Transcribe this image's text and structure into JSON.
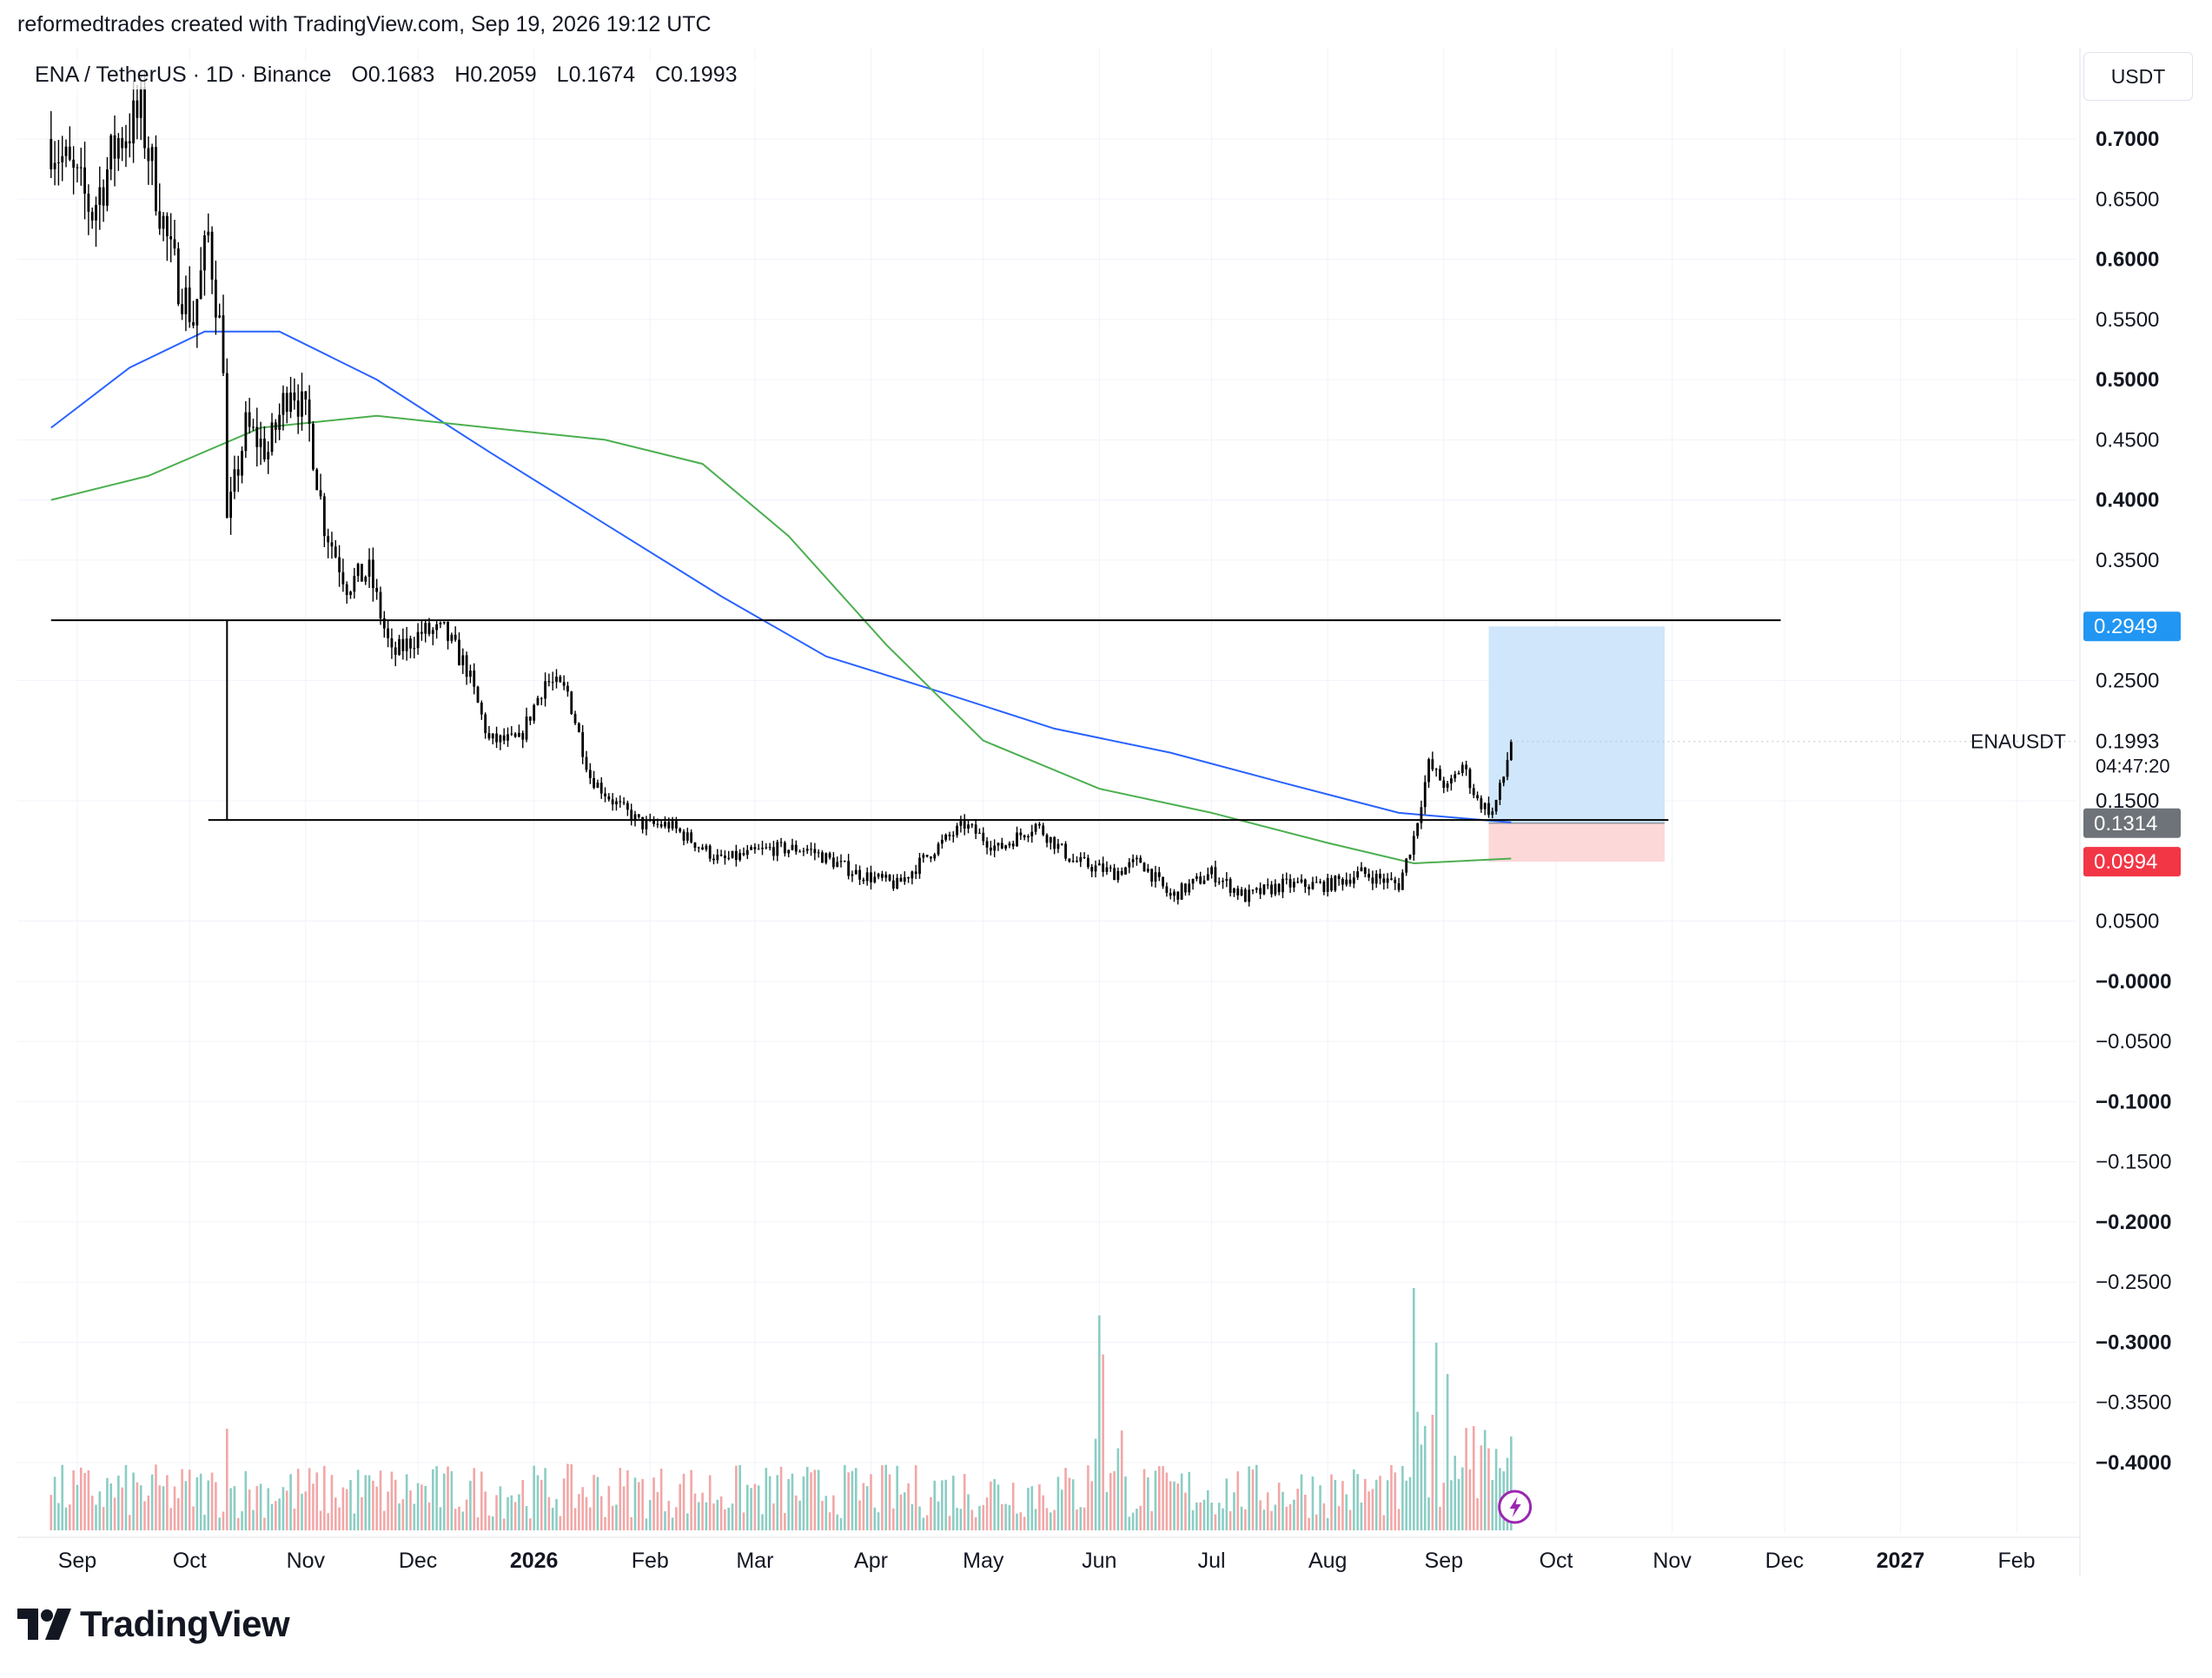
{
  "header": {
    "credit": "reformedtrades created with TradingView.com, Sep 19, 2026 19:12 UTC"
  },
  "symbol": {
    "name": "ENA / TetherUS · 1D · Binance",
    "open": "O0.1683",
    "high": "H0.2059",
    "low": "L0.1674",
    "close": "C0.1993"
  },
  "currency_button": "USDT",
  "logo_text": "TradingView",
  "colors": {
    "candle": "#000000",
    "ma_blue": "#2962ff",
    "ma_green": "#4caf50",
    "vol_up": "#8bcdc4",
    "vol_down": "#f2a7a7",
    "target_fill": "#cfe6fb",
    "stop_fill": "#fcd8d8",
    "badge_target": "#2196f3",
    "badge_entry": "#6d7378",
    "badge_stop": "#f23645",
    "grid": "#f0f3fa"
  },
  "chart_data": {
    "type": "candlestick",
    "symbol_label": "ENAUSDT",
    "last_price": "0.1993",
    "countdown": "04:47:20",
    "y_axis": {
      "range": [
        -0.45,
        0.75
      ],
      "ticks": [
        {
          "v": 0.7,
          "label": "0.7000",
          "bold": true
        },
        {
          "v": 0.65,
          "label": "0.6500",
          "bold": false
        },
        {
          "v": 0.6,
          "label": "0.6000",
          "bold": true
        },
        {
          "v": 0.55,
          "label": "0.5500",
          "bold": false
        },
        {
          "v": 0.5,
          "label": "0.5000",
          "bold": true
        },
        {
          "v": 0.45,
          "label": "0.4500",
          "bold": false
        },
        {
          "v": 0.4,
          "label": "0.4000",
          "bold": true
        },
        {
          "v": 0.35,
          "label": "0.3500",
          "bold": false
        },
        {
          "v": 0.25,
          "label": "0.2500",
          "bold": false
        },
        {
          "v": 0.15,
          "label": "0.1500",
          "bold": false
        },
        {
          "v": 0.05,
          "label": "0.0500",
          "bold": false
        },
        {
          "v": 0.0,
          "label": "−0.0000",
          "bold": true
        },
        {
          "v": -0.05,
          "label": "−0.0500",
          "bold": false
        },
        {
          "v": -0.1,
          "label": "−0.1000",
          "bold": true
        },
        {
          "v": -0.15,
          "label": "−0.1500",
          "bold": false
        },
        {
          "v": -0.2,
          "label": "−0.2000",
          "bold": true
        },
        {
          "v": -0.25,
          "label": "−0.2500",
          "bold": false
        },
        {
          "v": -0.3,
          "label": "−0.3000",
          "bold": true
        },
        {
          "v": -0.35,
          "label": "−0.3500",
          "bold": false
        },
        {
          "v": -0.4,
          "label": "−0.4000",
          "bold": true
        }
      ]
    },
    "x_axis": {
      "labels": [
        {
          "date": "2025-09-01",
          "label": "Sep",
          "bold": false
        },
        {
          "date": "2025-10-01",
          "label": "Oct",
          "bold": false
        },
        {
          "date": "2025-11-01",
          "label": "Nov",
          "bold": false
        },
        {
          "date": "2025-12-01",
          "label": "Dec",
          "bold": false
        },
        {
          "date": "2026-01-01",
          "label": "2026",
          "bold": true
        },
        {
          "date": "2026-02-01",
          "label": "Feb",
          "bold": false
        },
        {
          "date": "2026-03-01",
          "label": "Mar",
          "bold": false
        },
        {
          "date": "2026-04-01",
          "label": "Apr",
          "bold": false
        },
        {
          "date": "2026-05-01",
          "label": "May",
          "bold": false
        },
        {
          "date": "2026-06-01",
          "label": "Jun",
          "bold": false
        },
        {
          "date": "2026-07-01",
          "label": "Jul",
          "bold": false
        },
        {
          "date": "2026-08-01",
          "label": "Aug",
          "bold": false
        },
        {
          "date": "2026-09-01",
          "label": "Sep",
          "bold": false
        },
        {
          "date": "2026-10-01",
          "label": "Oct",
          "bold": false
        },
        {
          "date": "2026-11-01",
          "label": "Nov",
          "bold": false
        },
        {
          "date": "2026-12-01",
          "label": "Dec",
          "bold": false
        },
        {
          "date": "2027-01-01",
          "label": "2027",
          "bold": true
        },
        {
          "date": "2027-02-01",
          "label": "Feb",
          "bold": false
        }
      ]
    },
    "price_path": [
      [
        "2025-08-25",
        0.7
      ],
      [
        "2025-09-05",
        0.64
      ],
      [
        "2025-09-12",
        0.7
      ],
      [
        "2025-09-18",
        0.72
      ],
      [
        "2025-09-26",
        0.6
      ],
      [
        "2025-10-02",
        0.55
      ],
      [
        "2025-10-06",
        0.62
      ],
      [
        "2025-10-10",
        0.52
      ],
      [
        "2025-10-11",
        0.38
      ],
      [
        "2025-10-16",
        0.46
      ],
      [
        "2025-10-22",
        0.44
      ],
      [
        "2025-10-28",
        0.5
      ],
      [
        "2025-11-02",
        0.46
      ],
      [
        "2025-11-06",
        0.38
      ],
      [
        "2025-11-12",
        0.33
      ],
      [
        "2025-11-18",
        0.34
      ],
      [
        "2025-11-24",
        0.27
      ],
      [
        "2025-12-02",
        0.29
      ],
      [
        "2025-12-08",
        0.29
      ],
      [
        "2025-12-14",
        0.26
      ],
      [
        "2025-12-20",
        0.2
      ],
      [
        "2025-12-28",
        0.2
      ],
      [
        "2026-01-04",
        0.25
      ],
      [
        "2026-01-10",
        0.24
      ],
      [
        "2026-01-16",
        0.17
      ],
      [
        "2026-01-22",
        0.15
      ],
      [
        "2026-01-30",
        0.13
      ],
      [
        "2026-02-06",
        0.13
      ],
      [
        "2026-02-20",
        0.1
      ],
      [
        "2026-03-05",
        0.11
      ],
      [
        "2026-03-15",
        0.11
      ],
      [
        "2026-03-28",
        0.09
      ],
      [
        "2026-04-08",
        0.08
      ],
      [
        "2026-04-18",
        0.11
      ],
      [
        "2026-04-26",
        0.13
      ],
      [
        "2026-05-05",
        0.11
      ],
      [
        "2026-05-15",
        0.13
      ],
      [
        "2026-05-25",
        0.1
      ],
      [
        "2026-06-05",
        0.09
      ],
      [
        "2026-06-12",
        0.1
      ],
      [
        "2026-06-20",
        0.07
      ],
      [
        "2026-07-01",
        0.09
      ],
      [
        "2026-07-10",
        0.07
      ],
      [
        "2026-07-20",
        0.08
      ],
      [
        "2026-08-01",
        0.08
      ],
      [
        "2026-08-10",
        0.09
      ],
      [
        "2026-08-20",
        0.08
      ],
      [
        "2026-08-24",
        0.12
      ],
      [
        "2026-08-28",
        0.18
      ],
      [
        "2026-09-02",
        0.16
      ],
      [
        "2026-09-06",
        0.18
      ],
      [
        "2026-09-10",
        0.15
      ],
      [
        "2026-09-14",
        0.14
      ],
      [
        "2026-09-17",
        0.17
      ],
      [
        "2026-09-19",
        0.1993
      ]
    ],
    "series": [
      {
        "name": "MA (blue)",
        "points": [
          [
            "2025-08-25",
            0.46
          ],
          [
            "2025-09-15",
            0.51
          ],
          [
            "2025-10-05",
            0.54
          ],
          [
            "2025-10-25",
            0.54
          ],
          [
            "2025-11-20",
            0.5
          ],
          [
            "2025-12-20",
            0.44
          ],
          [
            "2026-01-20",
            0.38
          ],
          [
            "2026-02-20",
            0.32
          ],
          [
            "2026-03-20",
            0.27
          ],
          [
            "2026-04-20",
            0.24
          ],
          [
            "2026-05-20",
            0.21
          ],
          [
            "2026-06-20",
            0.19
          ],
          [
            "2026-07-20",
            0.165
          ],
          [
            "2026-08-20",
            0.14
          ],
          [
            "2026-09-19",
            0.132
          ]
        ]
      },
      {
        "name": "MA (green)",
        "points": [
          [
            "2025-08-25",
            0.4
          ],
          [
            "2025-09-20",
            0.42
          ],
          [
            "2025-10-20",
            0.46
          ],
          [
            "2025-11-20",
            0.47
          ],
          [
            "2025-12-20",
            0.46
          ],
          [
            "2026-01-20",
            0.45
          ],
          [
            "2026-02-15",
            0.43
          ],
          [
            "2026-03-10",
            0.37
          ],
          [
            "2026-04-05",
            0.28
          ],
          [
            "2026-05-01",
            0.2
          ],
          [
            "2026-06-01",
            0.16
          ],
          [
            "2026-07-01",
            0.14
          ],
          [
            "2026-08-01",
            0.115
          ],
          [
            "2026-08-24",
            0.098
          ],
          [
            "2026-09-19",
            0.102
          ]
        ]
      }
    ],
    "horizontal_lines": [
      {
        "y": 0.3,
        "from": "2025-08-25",
        "to": "2026-11-30"
      },
      {
        "y": 0.134,
        "from": "2025-10-06",
        "to": "2026-10-31"
      }
    ],
    "vertical_line": {
      "x": "2025-10-11",
      "from": 0.134,
      "to": 0.3
    },
    "position": {
      "start": "2026-09-13",
      "end": "2026-10-30",
      "target": 0.2949,
      "entry": 0.1314,
      "stop": 0.0994,
      "target_label": "0.2949",
      "entry_label": "0.1314",
      "stop_label": "0.0994"
    },
    "volume_spikes": [
      {
        "date": "2025-10-11",
        "level": 0.26
      },
      {
        "date": "2026-06-01",
        "level": 0.55
      },
      {
        "date": "2026-06-02",
        "level": 0.45
      },
      {
        "date": "2026-08-24",
        "level": 0.62
      },
      {
        "date": "2026-08-30",
        "level": 0.48
      },
      {
        "date": "2026-09-02",
        "level": 0.4
      },
      {
        "date": "2026-09-19",
        "level": 0.24
      }
    ]
  }
}
